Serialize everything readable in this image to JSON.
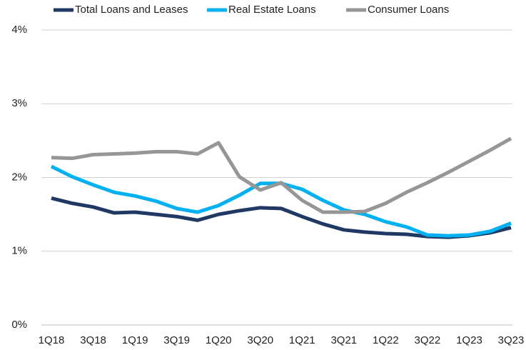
{
  "chart_data": {
    "type": "line",
    "categories": [
      "1Q18",
      null,
      "3Q18",
      null,
      "1Q19",
      null,
      "3Q19",
      null,
      "1Q20",
      null,
      "3Q20",
      null,
      "1Q21",
      null,
      "3Q21",
      null,
      "1Q22",
      null,
      "3Q22",
      null,
      "1Q23",
      null,
      "3Q23"
    ],
    "series": [
      {
        "name": "Total Loans and Leases",
        "color": "#1f3864",
        "values": [
          1.72,
          1.65,
          1.6,
          1.52,
          1.53,
          1.5,
          1.47,
          1.42,
          1.5,
          1.55,
          1.59,
          1.58,
          1.47,
          1.37,
          1.29,
          1.26,
          1.24,
          1.23,
          1.2,
          1.19,
          1.21,
          1.25,
          1.32
        ]
      },
      {
        "name": "Real Estate Loans",
        "color": "#00b0f0",
        "values": [
          2.15,
          2.01,
          1.9,
          1.8,
          1.75,
          1.68,
          1.58,
          1.53,
          1.62,
          1.76,
          1.92,
          1.92,
          1.84,
          1.69,
          1.56,
          1.5,
          1.4,
          1.33,
          1.22,
          1.21,
          1.22,
          1.27,
          1.38
        ]
      },
      {
        "name": "Consumer Loans",
        "color": "#969696",
        "values": [
          2.27,
          2.26,
          2.31,
          2.32,
          2.33,
          2.35,
          2.35,
          2.32,
          2.47,
          2.01,
          1.83,
          1.93,
          1.69,
          1.53,
          1.53,
          1.54,
          1.65,
          1.8,
          1.93,
          2.07,
          2.22,
          2.37,
          2.53
        ]
      }
    ],
    "ylim": [
      0,
      4
    ],
    "yticks": [
      {
        "value": 0,
        "label": "0%"
      },
      {
        "value": 1,
        "label": "1%"
      },
      {
        "value": 2,
        "label": "2%"
      },
      {
        "value": 3,
        "label": "3%"
      },
      {
        "value": 4,
        "label": "4%"
      }
    ],
    "grid": true,
    "legend": "top"
  }
}
